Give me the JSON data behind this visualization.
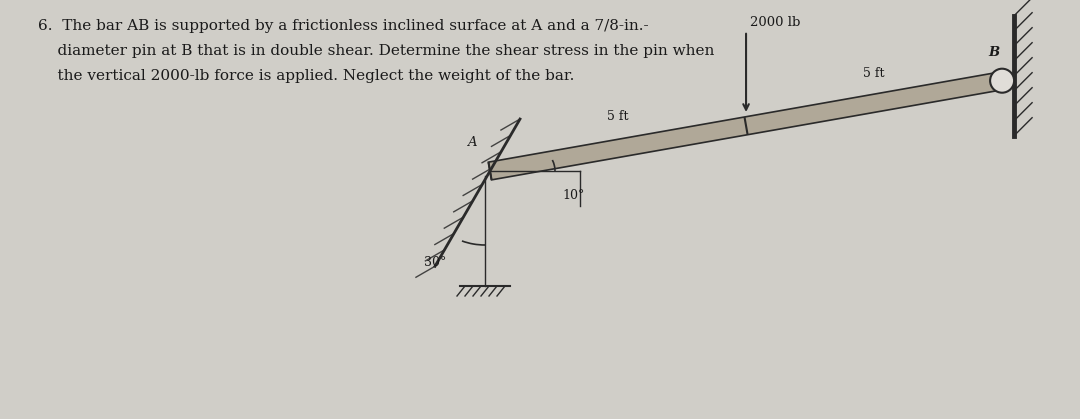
{
  "bg_color": "#d0cec8",
  "text_color": "#1a1a1a",
  "line1": "6.  The bar AB is supported by a frictionless inclined surface at A and a 7/8-in.-",
  "line2": "    diameter pin at B that is in double shear. Determine the shear stress in the pin when",
  "line3": "    the vertical 2000-lb force is applied. Neglect the weight of the bar.",
  "force_label": "2000 lb",
  "seg_label_left": "5 ft",
  "seg_label_right": "5 ft",
  "angle_10": "10°",
  "angle_30": "30°",
  "label_A": "A",
  "label_B": "B",
  "bar_color": "#b0a898",
  "bar_edge_color": "#2a2a2a",
  "dark_color": "#2a2a2a"
}
